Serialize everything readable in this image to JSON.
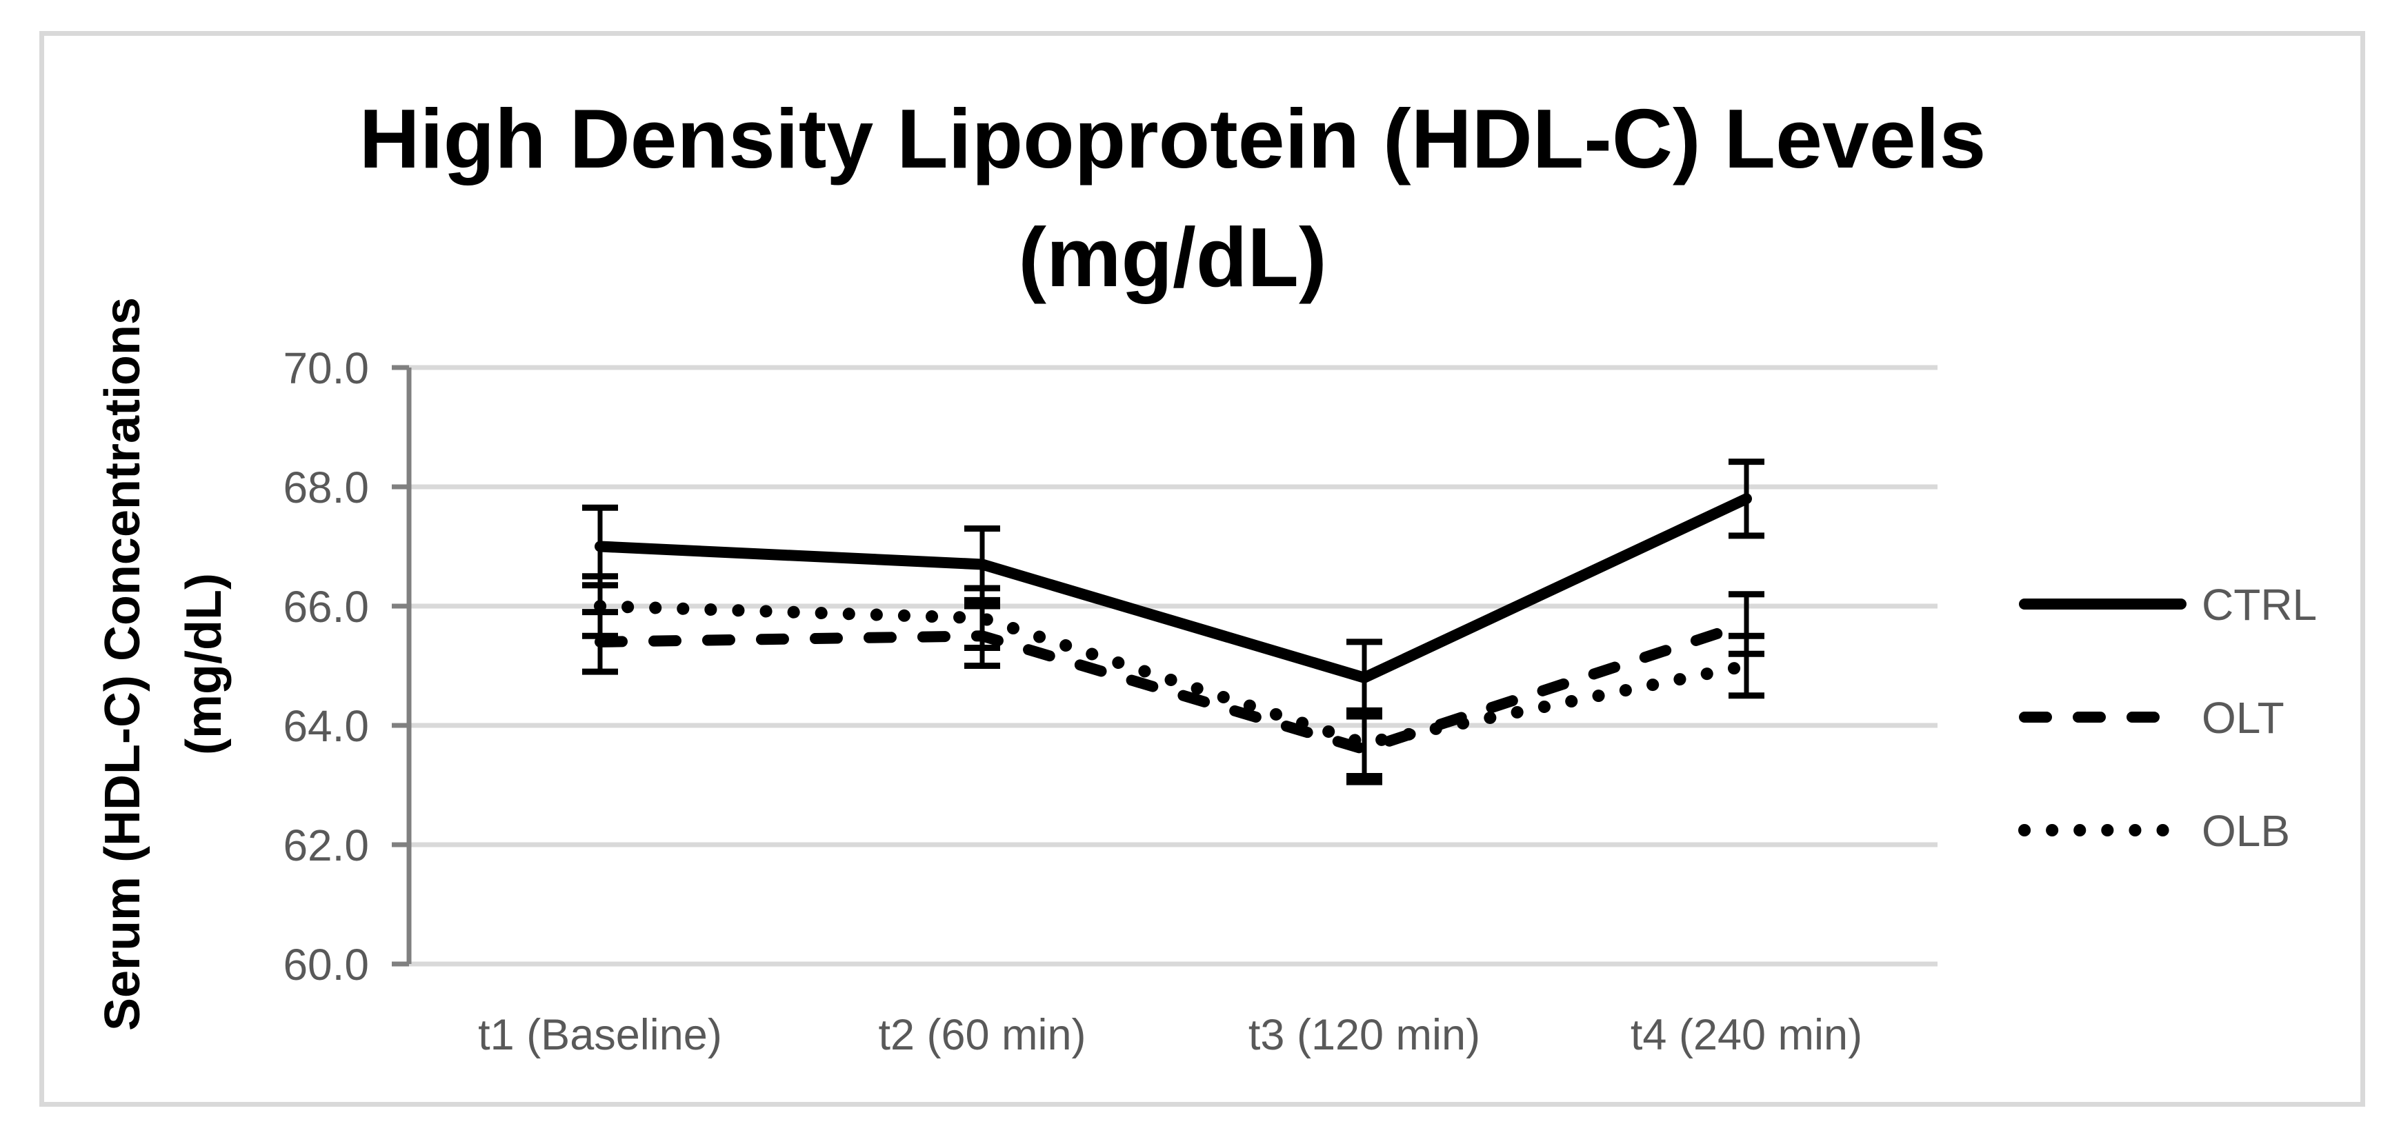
{
  "page": {
    "background": "#ffffff",
    "border_color": "#d9d9d9"
  },
  "chart_data": {
    "type": "line",
    "title": "High Density Lipoprotein (HDL-C) Levels (mg/dL)",
    "title_lines": [
      "High Density Lipoprotein (HDL-C) Levels",
      "(mg/dL)"
    ],
    "y_axis_title_lines": [
      "Serum (HDL-C) Concentrations",
      "(mg/dL)"
    ],
    "xlabel": "",
    "ylabel": "Serum (HDL-C) Concentrations (mg/dL)",
    "categories": [
      "t1 (Baseline)",
      "t2 (60 min)",
      "t3 (120 min)",
      "t4 (240 min)"
    ],
    "ylim": [
      60,
      70
    ],
    "grid": true,
    "legend_position": "right",
    "y_ticks": [
      {
        "label": "60.0",
        "value": 60
      },
      {
        "label": "62.0",
        "value": 62
      },
      {
        "label": "64.0",
        "value": 64
      },
      {
        "label": "66.0",
        "value": 66
      },
      {
        "label": "68.0",
        "value": 68
      },
      {
        "label": "70.0",
        "value": 70
      }
    ],
    "series": [
      {
        "name": "CTRL",
        "style": "solid",
        "values": [
          67.0,
          66.7,
          64.8,
          67.8
        ],
        "errors": [
          0.65,
          0.6,
          0.6,
          0.62
        ]
      },
      {
        "name": "OLT",
        "style": "dashed",
        "values": [
          65.4,
          65.5,
          63.6,
          65.7
        ],
        "errors": [
          0.5,
          0.5,
          0.55,
          0.5
        ]
      },
      {
        "name": "OLB",
        "style": "dotted",
        "values": [
          66.0,
          65.8,
          63.7,
          65.0
        ],
        "errors": [
          0.5,
          0.5,
          0.55,
          0.5
        ]
      }
    ],
    "colors": {
      "series": "#000000",
      "grid": "#d9d9d9",
      "axis": "#808080",
      "tick_label": "#595959",
      "legend_label": "#595959",
      "title": "#000000"
    }
  }
}
